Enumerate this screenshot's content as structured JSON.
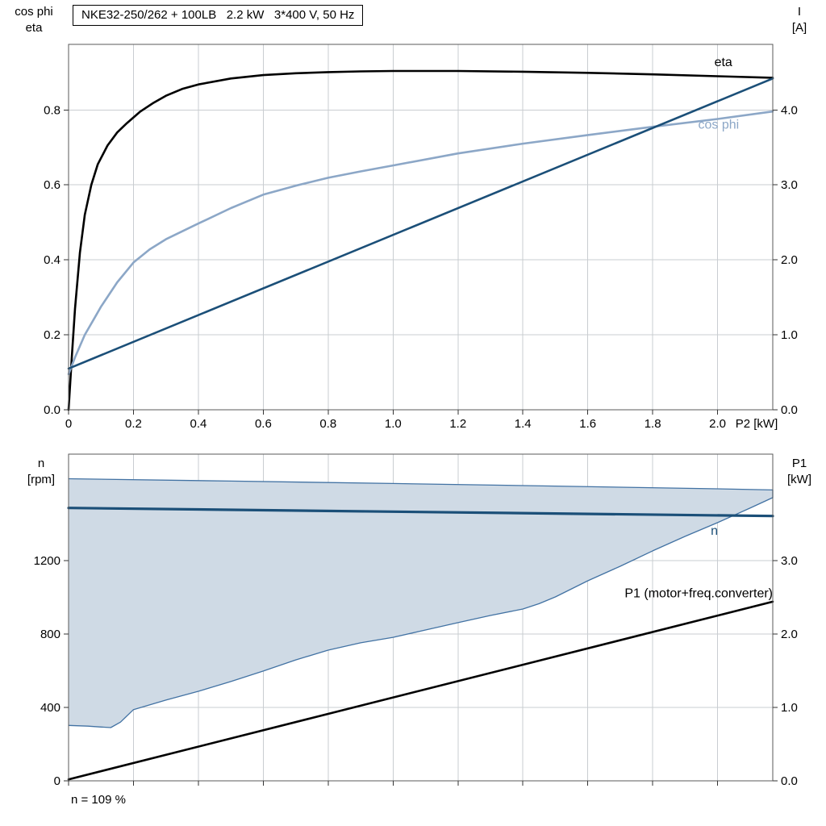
{
  "chart_data": [
    {
      "type": "line",
      "panel": "top",
      "title": "NKE32-250/262 + 100LB   2.2 kW   3*400 V, 50 Hz",
      "xlabel": "P2 [kW]",
      "ylabel_left": "cos phi\neta",
      "ylabel_right": "I\n[A]",
      "xlim": [
        0,
        2.17
      ],
      "x_ticks": [
        0,
        0.2,
        0.4,
        0.6,
        0.8,
        1.0,
        1.2,
        1.4,
        1.6,
        1.8,
        2.0
      ],
      "x_tick_labels": [
        "0",
        "0.2",
        "0.4",
        "0.6",
        "0.8",
        "1.0",
        "1.2",
        "1.4",
        "1.6",
        "1.8",
        "2.0"
      ],
      "ylim_left": [
        0,
        0.975
      ],
      "left_ticks": [
        0,
        0.2,
        0.4,
        0.6,
        0.8
      ],
      "left_tick_labels": [
        "0.0",
        "0.2",
        "0.4",
        "0.6",
        "0.8"
      ],
      "ylim_right": [
        0,
        4.875
      ],
      "right_ticks": [
        0,
        1,
        2,
        3,
        4
      ],
      "right_tick_labels": [
        "0.0",
        "1.0",
        "2.0",
        "3.0",
        "4.0"
      ],
      "grid": true,
      "series": [
        {
          "name": "eta",
          "axis": "left",
          "color": "#000000",
          "width": 2.6,
          "x": [
            0,
            0.01,
            0.02,
            0.035,
            0.05,
            0.07,
            0.09,
            0.12,
            0.15,
            0.18,
            0.22,
            0.26,
            0.3,
            0.35,
            0.4,
            0.5,
            0.6,
            0.7,
            0.8,
            0.9,
            1.0,
            1.2,
            1.4,
            1.6,
            1.8,
            2.0,
            2.17
          ],
          "y": [
            0,
            0.14,
            0.27,
            0.42,
            0.52,
            0.6,
            0.655,
            0.705,
            0.74,
            0.765,
            0.795,
            0.818,
            0.838,
            0.856,
            0.868,
            0.884,
            0.893,
            0.898,
            0.901,
            0.903,
            0.904,
            0.904,
            0.902,
            0.899,
            0.895,
            0.89,
            0.886
          ]
        },
        {
          "name": "cos phi",
          "axis": "left",
          "color": "#8ca7c7",
          "width": 2.6,
          "x": [
            0,
            0.02,
            0.05,
            0.08,
            0.1,
            0.15,
            0.2,
            0.25,
            0.3,
            0.4,
            0.5,
            0.6,
            0.7,
            0.8,
            0.9,
            1.0,
            1.2,
            1.4,
            1.6,
            1.8,
            2.0,
            2.17
          ],
          "y": [
            0.095,
            0.14,
            0.2,
            0.245,
            0.275,
            0.34,
            0.393,
            0.428,
            0.455,
            0.497,
            0.538,
            0.574,
            0.598,
            0.619,
            0.636,
            0.652,
            0.684,
            0.71,
            0.733,
            0.755,
            0.776,
            0.796
          ]
        },
        {
          "name": "I",
          "axis": "right",
          "color": "#1b4f78",
          "width": 2.6,
          "x": [
            0,
            2.17
          ],
          "y": [
            0.55,
            4.42
          ]
        }
      ],
      "annotations": [
        {
          "text": "eta",
          "x": 1.99,
          "y": 0.917,
          "axis": "left",
          "color": "#000000",
          "anchor": "start",
          "size": 16
        },
        {
          "text": "cos phi",
          "x": 1.94,
          "y": 0.75,
          "axis": "left",
          "color": "#8ca7c7",
          "anchor": "start",
          "size": 16
        }
      ]
    },
    {
      "type": "line",
      "panel": "bottom",
      "title": "",
      "xlabel": "",
      "ylabel_left": "n\n[rpm]",
      "ylabel_right": "P1\n[kW]",
      "footnote": "n = 109 %",
      "xlim": [
        0,
        2.17
      ],
      "x_ticks": [
        0,
        0.2,
        0.4,
        0.6,
        0.8,
        1.0,
        1.2,
        1.4,
        1.6,
        1.8,
        2.0
      ],
      "x_tick_labels": [],
      "ylim_left": [
        0,
        1780
      ],
      "left_ticks": [
        0,
        400,
        800,
        1200
      ],
      "left_tick_labels": [
        "0",
        "400",
        "800",
        "1200"
      ],
      "ylim_right": [
        0,
        4.45
      ],
      "right_ticks": [
        0,
        1,
        2,
        3
      ],
      "right_tick_labels": [
        "0.0",
        "1.0",
        "2.0",
        "3.0"
      ],
      "grid": true,
      "band": {
        "name": "speed-operating-range",
        "fill": "#cfdae5",
        "edge": "#4272a3",
        "edge_width": 1.3,
        "x_upper": [
          0,
          0.5,
          1.0,
          1.5,
          2.0,
          2.17
        ],
        "upper": [
          1646,
          1633,
          1620,
          1606,
          1591,
          1585
        ],
        "x_lower": [
          0,
          0.06,
          0.1,
          0.13,
          0.16,
          0.2,
          0.3,
          0.4,
          0.5,
          0.6,
          0.7,
          0.8,
          0.9,
          1.0,
          1.1,
          1.2,
          1.3,
          1.4,
          1.45,
          1.5,
          1.6,
          1.7,
          1.8,
          1.9,
          2.0,
          2.1,
          2.17
        ],
        "lower": [
          302,
          298,
          293,
          290,
          320,
          388,
          440,
          488,
          541,
          598,
          659,
          712,
          752,
          782,
          822,
          862,
          901,
          936,
          965,
          1002,
          1090,
          1169,
          1253,
          1332,
          1407,
          1486,
          1543
        ]
      },
      "series": [
        {
          "name": "n",
          "axis": "left",
          "color": "#1b4f78",
          "width": 3.2,
          "x": [
            0,
            2.17
          ],
          "y": [
            1487,
            1443
          ]
        },
        {
          "name": "P1 (motor+freq.converter)",
          "axis": "right",
          "color": "#000000",
          "width": 2.6,
          "x": [
            0,
            2.17
          ],
          "y": [
            0.02,
            2.44
          ]
        }
      ],
      "annotations": [
        {
          "text": "n",
          "x": 1.99,
          "y": 1340,
          "axis": "left",
          "color": "#1b4f78",
          "anchor": "middle",
          "size": 16
        },
        {
          "text": "P1 (motor+freq.converter)",
          "x": 2.17,
          "y": 2.5,
          "axis": "right",
          "color": "#000000",
          "anchor": "end",
          "size": 16
        }
      ]
    }
  ],
  "style": {
    "grid_color": "#c9cdd1",
    "frame_color": "#5a5a5a",
    "tick_color": "#333333",
    "tick_label_size": 15
  }
}
